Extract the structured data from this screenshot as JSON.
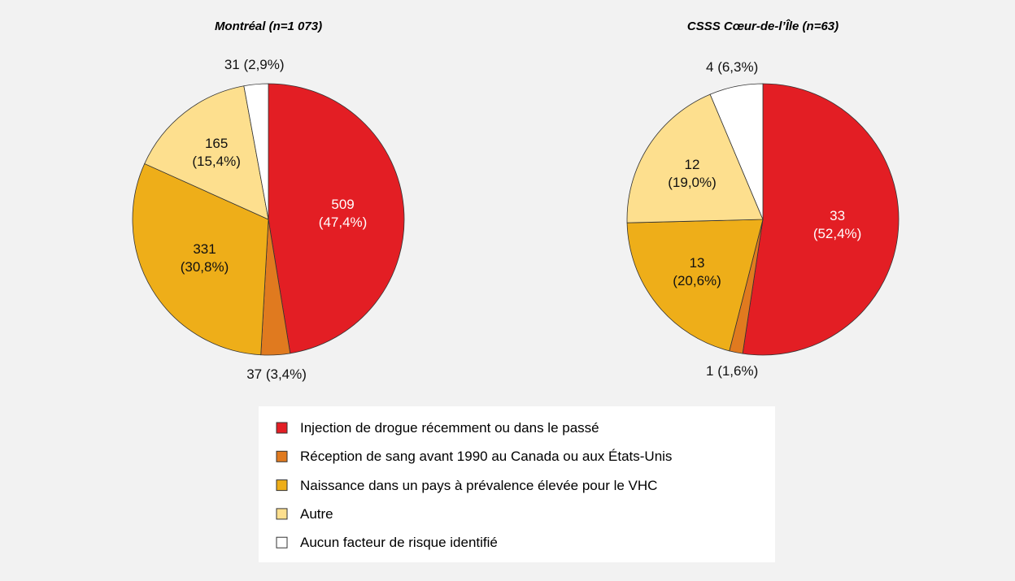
{
  "chart_data": [
    {
      "type": "pie",
      "title": "Montréal (n=1 073)",
      "values": [
        509,
        37,
        331,
        165,
        31
      ],
      "value_labels": [
        "509 (47,4%)",
        "37 (3,4%)",
        "331 (30,8%)",
        "165 (15,4%)",
        "31 (2,9%)"
      ]
    },
    {
      "type": "pie",
      "title": "CSSS Cœur-de-l’Île (n=63)",
      "values": [
        33,
        1,
        13,
        12,
        4
      ],
      "value_labels": [
        "33 (52,4%)",
        "1 (1,6%)",
        "13 (20,6%)",
        "12 (19,0%)",
        "4 (6,3%)"
      ]
    }
  ],
  "legend": {
    "categories": [
      "Injection de drogue récemment ou dans le passé",
      "Réception de sang avant 1990 au Canada ou aux États-Unis",
      "Naissance dans un pays à prévalence élevée pour le VHC",
      "Autre",
      "Aucun facteur de risque identifié"
    ],
    "colors": [
      "#e31e24",
      "#e07a1f",
      "#eeae19",
      "#fddf8e",
      "#ffffff"
    ]
  }
}
